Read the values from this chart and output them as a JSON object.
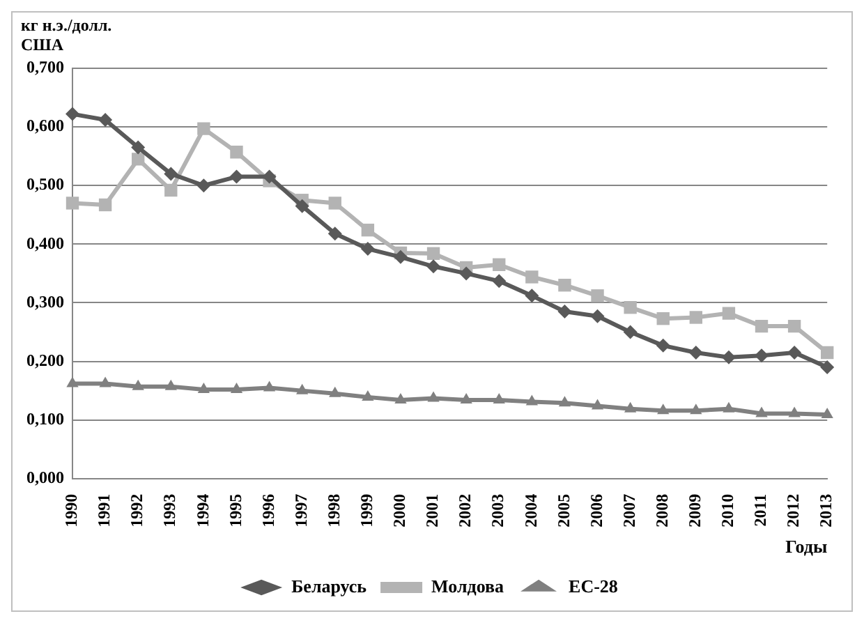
{
  "chart_data": {
    "type": "line",
    "ylabel": "кг н.э./долл. США",
    "xlabel": "Годы",
    "categories": [
      "1990",
      "1991",
      "1992",
      "1993",
      "1994",
      "1995",
      "1996",
      "1997",
      "1998",
      "1999",
      "2000",
      "2001",
      "2002",
      "2003",
      "2004",
      "2005",
      "2006",
      "2007",
      "2008",
      "2009",
      "2010",
      "2011",
      "2012",
      "2013"
    ],
    "series": [
      {
        "name": "Беларусь",
        "color": "#595959",
        "marker": "diamond",
        "values": [
          0.622,
          0.612,
          0.565,
          0.52,
          0.5,
          0.515,
          0.515,
          0.465,
          0.418,
          0.392,
          0.378,
          0.362,
          0.35,
          0.337,
          0.312,
          0.285,
          0.277,
          0.25,
          0.227,
          0.215,
          0.207,
          0.21,
          0.215,
          0.19
        ]
      },
      {
        "name": "Молдова",
        "color": "#b3b3b3",
        "marker": "square",
        "values": [
          0.47,
          0.467,
          0.545,
          0.492,
          0.597,
          0.557,
          0.508,
          0.475,
          0.47,
          0.424,
          0.385,
          0.384,
          0.36,
          0.365,
          0.344,
          0.33,
          0.312,
          0.292,
          0.273,
          0.275,
          0.282,
          0.26,
          0.26,
          0.215
        ]
      },
      {
        "name": "ЕС-28",
        "color": "#808080",
        "marker": "triangle",
        "values": [
          0.162,
          0.162,
          0.157,
          0.157,
          0.152,
          0.152,
          0.155,
          0.15,
          0.145,
          0.139,
          0.134,
          0.137,
          0.134,
          0.134,
          0.131,
          0.129,
          0.124,
          0.119,
          0.116,
          0.116,
          0.119,
          0.111,
          0.111,
          0.109
        ]
      }
    ],
    "ylim": [
      0,
      0.7
    ],
    "yticks": [
      {
        "value": 0,
        "label": "0,000"
      },
      {
        "value": 0.1,
        "label": "0,100"
      },
      {
        "value": 0.2,
        "label": "0,200"
      },
      {
        "value": 0.3,
        "label": "0,300"
      },
      {
        "value": 0.4,
        "label": "0,400"
      },
      {
        "value": 0.5,
        "label": "0,500"
      },
      {
        "value": 0.6,
        "label": "0,600"
      },
      {
        "value": 0.7,
        "label": "0,700"
      }
    ],
    "grid": "y",
    "legend": "bottom",
    "line_style": "solid"
  }
}
